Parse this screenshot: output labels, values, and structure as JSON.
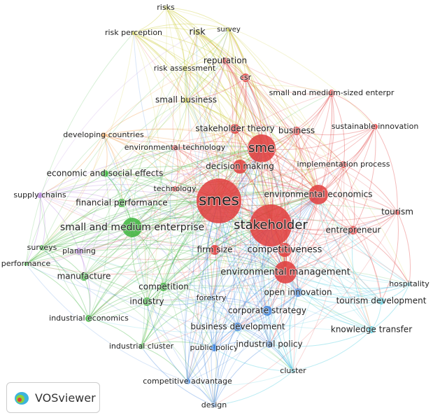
{
  "nodes": [
    {
      "label": "risks",
      "color": "#c8c828"
    },
    {
      "label": "risk perception",
      "color": "#c8c828"
    },
    {
      "label": "risk",
      "color": "#c8c828"
    },
    {
      "label": "survey",
      "color": "#c8c828"
    },
    {
      "label": "risk assessment",
      "color": "#c8c828"
    },
    {
      "label": "reputation",
      "color": "#e03c3c"
    },
    {
      "label": "csr",
      "color": "#e03c3c"
    },
    {
      "label": "small and medium-sized enterpr",
      "color": "#e03c3c"
    },
    {
      "label": "small business",
      "color": "#c8c828"
    },
    {
      "label": "stakeholder theory",
      "color": "#e03c3c"
    },
    {
      "label": "business",
      "color": "#e03c3c"
    },
    {
      "label": "sustainable innovation",
      "color": "#e03c3c"
    },
    {
      "label": "developing countries",
      "color": "#f0963c"
    },
    {
      "label": "sme",
      "color": "#e03c3c"
    },
    {
      "label": "environmental technology",
      "color": "#e03c3c"
    },
    {
      "label": "decision making",
      "color": "#e03c3c"
    },
    {
      "label": "implementation process",
      "color": "#e03c3c"
    },
    {
      "label": "economic and social effects",
      "color": "#3cb43c"
    },
    {
      "label": "supply chains",
      "color": "#b482dc"
    },
    {
      "label": "technology",
      "color": "#e03c3c"
    },
    {
      "label": "environmental economics",
      "color": "#e03c3c"
    },
    {
      "label": "smes",
      "color": "#e03c3c"
    },
    {
      "label": "financial performance",
      "color": "#3cb43c"
    },
    {
      "label": "tourism",
      "color": "#e03c3c"
    },
    {
      "label": "stakeholder",
      "color": "#e03c3c"
    },
    {
      "label": "small and medium enterprise",
      "color": "#3cb43c"
    },
    {
      "label": "entrepreneur",
      "color": "#e03c3c"
    },
    {
      "label": "surveys",
      "color": "#3cb43c"
    },
    {
      "label": "planning",
      "color": "#b482dc"
    },
    {
      "label": "firm size",
      "color": "#e03c3c"
    },
    {
      "label": "competitiveness",
      "color": "#e03c3c"
    },
    {
      "label": "performance",
      "color": "#3cb43c"
    },
    {
      "label": "hospitality",
      "color": "#3cc8dc"
    },
    {
      "label": "environmental management",
      "color": "#e03c3c"
    },
    {
      "label": "manufacture",
      "color": "#3cb43c"
    },
    {
      "label": "competition",
      "color": "#3cb43c"
    },
    {
      "label": "open innovation",
      "color": "#3c82dc"
    },
    {
      "label": "forestry",
      "color": "#3c82dc"
    },
    {
      "label": "industry",
      "color": "#3cb43c"
    },
    {
      "label": "tourism development",
      "color": "#3cc8dc"
    },
    {
      "label": "corporate strategy",
      "color": "#3c82dc"
    },
    {
      "label": "industrial economics",
      "color": "#3cb43c"
    },
    {
      "label": "business development",
      "color": "#3c82dc"
    },
    {
      "label": "knowledge transfer",
      "color": "#3cc8dc"
    },
    {
      "label": "industrial cluster",
      "color": "#3cb43c"
    },
    {
      "label": "public policy",
      "color": "#3c82dc"
    },
    {
      "label": "industrial policy",
      "color": "#3c82dc"
    },
    {
      "label": "cluster",
      "color": "#3cc8dc"
    },
    {
      "label": "competitive advantage",
      "color": "#3c82dc"
    },
    {
      "label": "design",
      "color": "#3c82dc"
    }
  ],
  "logo": "VOSviewer"
}
